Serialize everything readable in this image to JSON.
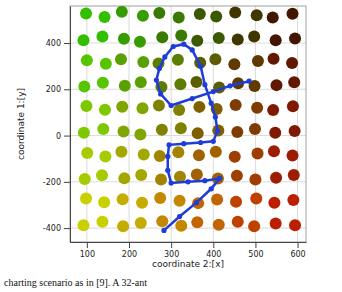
{
  "chart_data": {
    "type": "scatter",
    "x_label": "coordinate 2:[x]",
    "y_label": "coordinate 1:[y]",
    "xlim": [
      60,
      620
    ],
    "ylim": [
      -460,
      560
    ],
    "xticks": [
      100,
      200,
      300,
      400,
      500,
      600
    ],
    "yticks": [
      -400,
      -200,
      0,
      200,
      400
    ],
    "grid": true,
    "annotations": [
      "charting scenario as in [9]. A 32-ant"
    ],
    "series": [
      {
        "type": "scatter",
        "marker": "circle",
        "x": [
          98,
          142,
          183,
          233,
          272,
          318,
          368,
          407,
          452,
          503,
          541,
          588,
          92,
          137,
          188,
          226,
          279,
          324,
          362,
          413,
          458,
          497,
          548,
          594,
          100,
          145,
          181,
          234,
          270,
          316,
          369,
          405,
          450,
          506,
          543,
          587,
          94,
          138,
          190,
          228,
          277,
          322,
          360,
          414,
          459,
          498,
          550,
          592,
          99,
          143,
          184,
          232,
          271,
          319,
          367,
          408,
          453,
          504,
          542,
          589,
          93,
          139,
          187,
          227,
          278,
          323,
          363,
          412,
          457,
          499,
          547,
          593,
          101,
          144,
          182,
          235,
          273,
          317,
          366,
          406,
          451,
          505,
          544,
          588,
          95,
          136,
          189,
          229,
          276,
          321,
          361,
          411,
          456,
          500,
          549,
          591,
          98,
          141,
          185,
          231,
          274,
          320,
          364,
          409,
          454,
          502,
          545,
          590,
          92,
          137,
          186,
          228,
          279,
          324,
          362,
          413,
          458,
          497,
          548,
          594
        ],
        "values": [
          528,
          512,
          535,
          518,
          530,
          510,
          525,
          515,
          532,
          520,
          510,
          527,
          412,
          428,
          418,
          405,
          425,
          432,
          410,
          422,
          415,
          428,
          412,
          420,
          325,
          310,
          330,
          318,
          312,
          328,
          315,
          330,
          308,
          322,
          332,
          314,
          212,
          228,
          215,
          230,
          210,
          222,
          232,
          208,
          226,
          214,
          218,
          230,
          128,
          112,
          125,
          118,
          130,
          110,
          124,
          115,
          132,
          120,
          110,
          127,
          12,
          28,
          18,
          5,
          25,
          32,
          10,
          22,
          15,
          28,
          12,
          20,
          -75,
          -90,
          -70,
          -82,
          -88,
          -72,
          -85,
          -70,
          -92,
          -78,
          -68,
          -86,
          -188,
          -172,
          -185,
          -170,
          -190,
          -178,
          -168,
          -186,
          -174,
          -190,
          -182,
          -170,
          -272,
          -288,
          -275,
          -290,
          -270,
          -282,
          -292,
          -276,
          -286,
          -272,
          -290,
          -278,
          -388,
          -372,
          -392,
          -378,
          -370,
          -390,
          -375,
          -385,
          -372,
          -392,
          -380,
          -388
        ],
        "colors": [
          "#32bf00",
          "#32bf00",
          "#359d00",
          "#359d00",
          "#387b00",
          "#387b00",
          "#3c5900",
          "#3c5900",
          "#3f3600",
          "#3f3600",
          "#421600",
          "#421600",
          "#32bf00",
          "#32bf00",
          "#359d00",
          "#359d00",
          "#387b00",
          "#387b00",
          "#3c5900",
          "#3c5900",
          "#3f3600",
          "#3f3600",
          "#421600",
          "#421600",
          "#57c400",
          "#57c400",
          "#59a100",
          "#59a100",
          "#5b7e00",
          "#5b7e00",
          "#5c5c00",
          "#5c5c00",
          "#5e3900",
          "#5e3900",
          "#601800",
          "#601800",
          "#57c400",
          "#57c400",
          "#59a100",
          "#59a100",
          "#5b7e00",
          "#5b7e00",
          "#5c5c00",
          "#5c5c00",
          "#5e3900",
          "#5e3900",
          "#601800",
          "#601800",
          "#7ec800",
          "#7ec800",
          "#7ea500",
          "#7ea500",
          "#7f8200",
          "#7f8200",
          "#7f5f00",
          "#7f5f00",
          "#7f3c00",
          "#7f3c00",
          "#7f1a00",
          "#7f1a00",
          "#7ec800",
          "#7ec800",
          "#7ea500",
          "#7ea500",
          "#7f8200",
          "#7f8200",
          "#7f5f00",
          "#7f5f00",
          "#7f3c00",
          "#7f3c00",
          "#7f1a00",
          "#7f1a00",
          "#a4cc00",
          "#a4cc00",
          "#a2a800",
          "#a2a800",
          "#a18500",
          "#a18500",
          "#a06200",
          "#a06200",
          "#9e3e00",
          "#9e3e00",
          "#9d1d00",
          "#9d1d00",
          "#a4cc00",
          "#a4cc00",
          "#a2a800",
          "#a2a800",
          "#a18500",
          "#a18500",
          "#a06200",
          "#a06200",
          "#9e3e00",
          "#9e3e00",
          "#9d1d00",
          "#9d1d00",
          "#c9d000",
          "#c9d000",
          "#c6ac00",
          "#c6ac00",
          "#c38800",
          "#c38800",
          "#c16500",
          "#c16500",
          "#be4100",
          "#be4100",
          "#bb1f00",
          "#bb1f00",
          "#c9d000",
          "#c9d000",
          "#c6ac00",
          "#c6ac00",
          "#c38800",
          "#c38800",
          "#c16500",
          "#c16500",
          "#be4100",
          "#be4100",
          "#bb1f00",
          "#bb1f00"
        ]
      },
      {
        "type": "line",
        "marker": "circle",
        "color": "#1f3cd8",
        "x": [
          283,
          320,
          360,
          395,
          415,
          380,
          340,
          300,
          292,
          292,
          295,
          330,
          370,
          400,
          410,
          405,
          395,
          380,
          370,
          350,
          330,
          305,
          285,
          272,
          265,
          275,
          300,
          350,
          400,
          440,
          485
        ],
        "values": [
          -410,
          -350,
          -290,
          -230,
          -185,
          -195,
          -200,
          -205,
          -150,
          -90,
          -40,
          -35,
          -30,
          -25,
          20,
          80,
          140,
          220,
          300,
          370,
          395,
          385,
          340,
          290,
          240,
          180,
          130,
          160,
          190,
          215,
          235
        ]
      }
    ]
  }
}
